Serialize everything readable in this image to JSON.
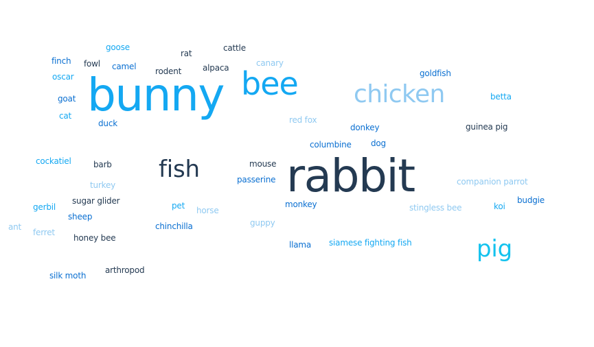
{
  "palette": {
    "medium_blue": "#0a6fd1",
    "bright_blue": "#14a8f2",
    "cyan": "#13c2ee",
    "pale_blue": "#8fc9f1",
    "dark_navy": "#243a52"
  },
  "words": [
    {
      "text": "goose"
    },
    {
      "text": "rat"
    },
    {
      "text": "cattle"
    },
    {
      "text": "finch"
    },
    {
      "text": "fowl"
    },
    {
      "text": "camel"
    },
    {
      "text": "rodent"
    },
    {
      "text": "alpaca"
    },
    {
      "text": "canary"
    },
    {
      "text": "oscar"
    },
    {
      "text": "goldfish"
    },
    {
      "text": "bunny"
    },
    {
      "text": "bee"
    },
    {
      "text": "chicken"
    },
    {
      "text": "goat"
    },
    {
      "text": "betta"
    },
    {
      "text": "cat"
    },
    {
      "text": "duck"
    },
    {
      "text": "red fox"
    },
    {
      "text": "donkey"
    },
    {
      "text": "guinea pig"
    },
    {
      "text": "columbine"
    },
    {
      "text": "dog"
    },
    {
      "text": "cockatiel"
    },
    {
      "text": "barb"
    },
    {
      "text": "fish"
    },
    {
      "text": "mouse"
    },
    {
      "text": "rabbit"
    },
    {
      "text": "passerine"
    },
    {
      "text": "turkey"
    },
    {
      "text": "companion parrot"
    },
    {
      "text": "sugar glider"
    },
    {
      "text": "gerbil"
    },
    {
      "text": "pet"
    },
    {
      "text": "horse"
    },
    {
      "text": "monkey"
    },
    {
      "text": "stingless bee"
    },
    {
      "text": "koi"
    },
    {
      "text": "budgie"
    },
    {
      "text": "sheep"
    },
    {
      "text": "guppy"
    },
    {
      "text": "ant"
    },
    {
      "text": "chinchilla"
    },
    {
      "text": "ferret"
    },
    {
      "text": "honey bee"
    },
    {
      "text": "llama"
    },
    {
      "text": "siamese fighting fish"
    },
    {
      "text": "pig"
    },
    {
      "text": "arthropod"
    },
    {
      "text": "silk moth"
    }
  ]
}
